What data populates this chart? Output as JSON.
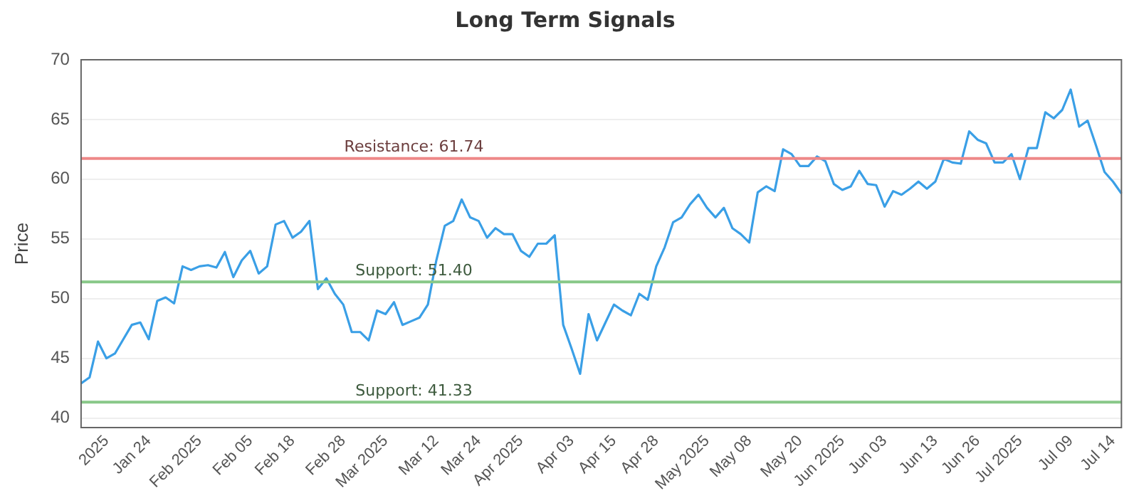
{
  "chart_data": {
    "type": "line",
    "title": "Long Term Signals",
    "ylabel": "Price",
    "categories": [
      null,
      null,
      null,
      "2025",
      null,
      null,
      null,
      null,
      "Jan 24",
      null,
      null,
      null,
      null,
      null,
      "Feb 2025",
      null,
      null,
      null,
      null,
      null,
      "Feb 05",
      null,
      null,
      null,
      null,
      "Feb 18",
      null,
      null,
      null,
      null,
      null,
      "Feb 28",
      null,
      null,
      null,
      null,
      "Mar 2025",
      null,
      null,
      null,
      null,
      null,
      "Mar 12",
      null,
      null,
      null,
      null,
      "Mar 24",
      null,
      null,
      null,
      null,
      "Apr 2025",
      null,
      null,
      null,
      null,
      null,
      "Apr 03",
      null,
      null,
      null,
      null,
      "Apr 15",
      null,
      null,
      null,
      null,
      "Apr 28",
      null,
      null,
      null,
      null,
      null,
      "May 2025",
      null,
      null,
      null,
      null,
      "May 08",
      null,
      null,
      null,
      null,
      null,
      "May 20",
      null,
      null,
      null,
      null,
      "Jun 2025",
      null,
      null,
      null,
      null,
      "Jun 03",
      null,
      null,
      null,
      null,
      null,
      "Jun 13",
      null,
      null,
      null,
      null,
      "Jun 26",
      null,
      null,
      null,
      null,
      "Jul 2025",
      null,
      null,
      null,
      null,
      null,
      "Jul 09",
      null,
      null,
      null,
      null,
      "Jul 14",
      null
    ],
    "series": [
      {
        "color": "#3a9fe6",
        "values": [
          42.9,
          43.4,
          46.4,
          45.0,
          45.4,
          46.6,
          47.8,
          48.0,
          46.6,
          49.8,
          50.1,
          49.6,
          52.7,
          52.4,
          52.7,
          52.8,
          52.6,
          53.9,
          51.8,
          53.2,
          54.0,
          52.1,
          52.7,
          56.2,
          56.5,
          55.1,
          55.6,
          56.5,
          50.8,
          51.7,
          50.4,
          49.5,
          47.2,
          47.2,
          46.5,
          49.0,
          48.7,
          49.7,
          47.8,
          48.1,
          48.4,
          49.5,
          53.2,
          56.1,
          56.5,
          58.3,
          56.8,
          56.5,
          55.1,
          55.9,
          55.4,
          55.4,
          54.0,
          53.5,
          54.6,
          54.6,
          55.3,
          47.8,
          45.8,
          43.7,
          48.7,
          46.5,
          48.0,
          49.5,
          49.0,
          48.6,
          50.4,
          49.9,
          52.7,
          54.3,
          56.4,
          56.8,
          57.9,
          58.7,
          57.6,
          56.8,
          57.6,
          55.9,
          55.4,
          54.7,
          58.9,
          59.4,
          59.0,
          62.5,
          62.1,
          61.1,
          61.1,
          61.9,
          61.5,
          59.6,
          59.1,
          59.4,
          60.7,
          59.6,
          59.5,
          57.7,
          59.0,
          58.7,
          59.2,
          59.8,
          59.2,
          59.8,
          61.7,
          61.4,
          61.3,
          64.0,
          63.3,
          63.0,
          61.4,
          61.4,
          62.1,
          60.0,
          62.6,
          62.6,
          65.6,
          65.1,
          65.8,
          67.5,
          64.4,
          64.9,
          62.8,
          60.6,
          59.8,
          58.8
        ]
      }
    ],
    "ylim": [
      39.2,
      70
    ],
    "yticks": [
      40,
      45,
      50,
      55,
      60,
      65,
      70
    ],
    "ref_lines": [
      {
        "axis": "y",
        "value": 61.74,
        "label": "Resistance: 61.74",
        "color": "#ee8888"
      },
      {
        "axis": "y",
        "value": 51.4,
        "label": "Support: 51.40",
        "color": "#88c888"
      },
      {
        "axis": "y",
        "value": 41.33,
        "label": "Support: 41.33",
        "color": "#88c888"
      }
    ],
    "grid": "y",
    "legend": false,
    "marker": "none",
    "line_style": "solid"
  }
}
